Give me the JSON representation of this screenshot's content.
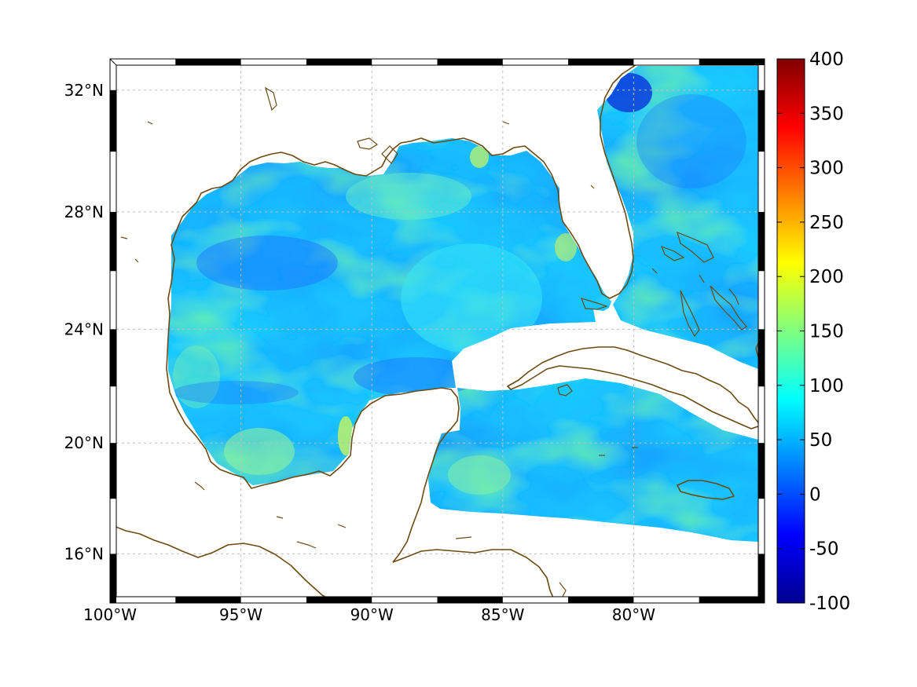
{
  "map": {
    "projection": "mercator",
    "lon_range": [
      -100,
      -75
    ],
    "lat_range": [
      14.2,
      33
    ],
    "x_ticks": [
      {
        "lon": -100,
        "label": "100°W"
      },
      {
        "lon": -95,
        "label": "95°W"
      },
      {
        "lon": -90,
        "label": "90°W"
      },
      {
        "lon": -85,
        "label": "85°W"
      },
      {
        "lon": -80,
        "label": "80°W"
      }
    ],
    "y_ticks": [
      {
        "lat": 16,
        "label": "16°N"
      },
      {
        "lat": 20,
        "label": "20°N"
      },
      {
        "lat": 24,
        "label": "24°N"
      },
      {
        "lat": 28,
        "label": "28°N"
      },
      {
        "lat": 32,
        "label": "32°N"
      }
    ],
    "grid": true,
    "frame": "checkered black/white border",
    "coastline_color": "#6b4a12",
    "land_color": "#ffffff"
  },
  "colorbar": {
    "colormap": "jet",
    "range": [
      -100,
      400
    ],
    "labels": [
      "400",
      "350",
      "300",
      "250",
      "200",
      "150",
      "100",
      "50",
      "0",
      "-50",
      "-100"
    ],
    "placement": "right"
  },
  "field": {
    "description_values": "ocean values mostly between 30 and 170",
    "typical_value": 75
  }
}
